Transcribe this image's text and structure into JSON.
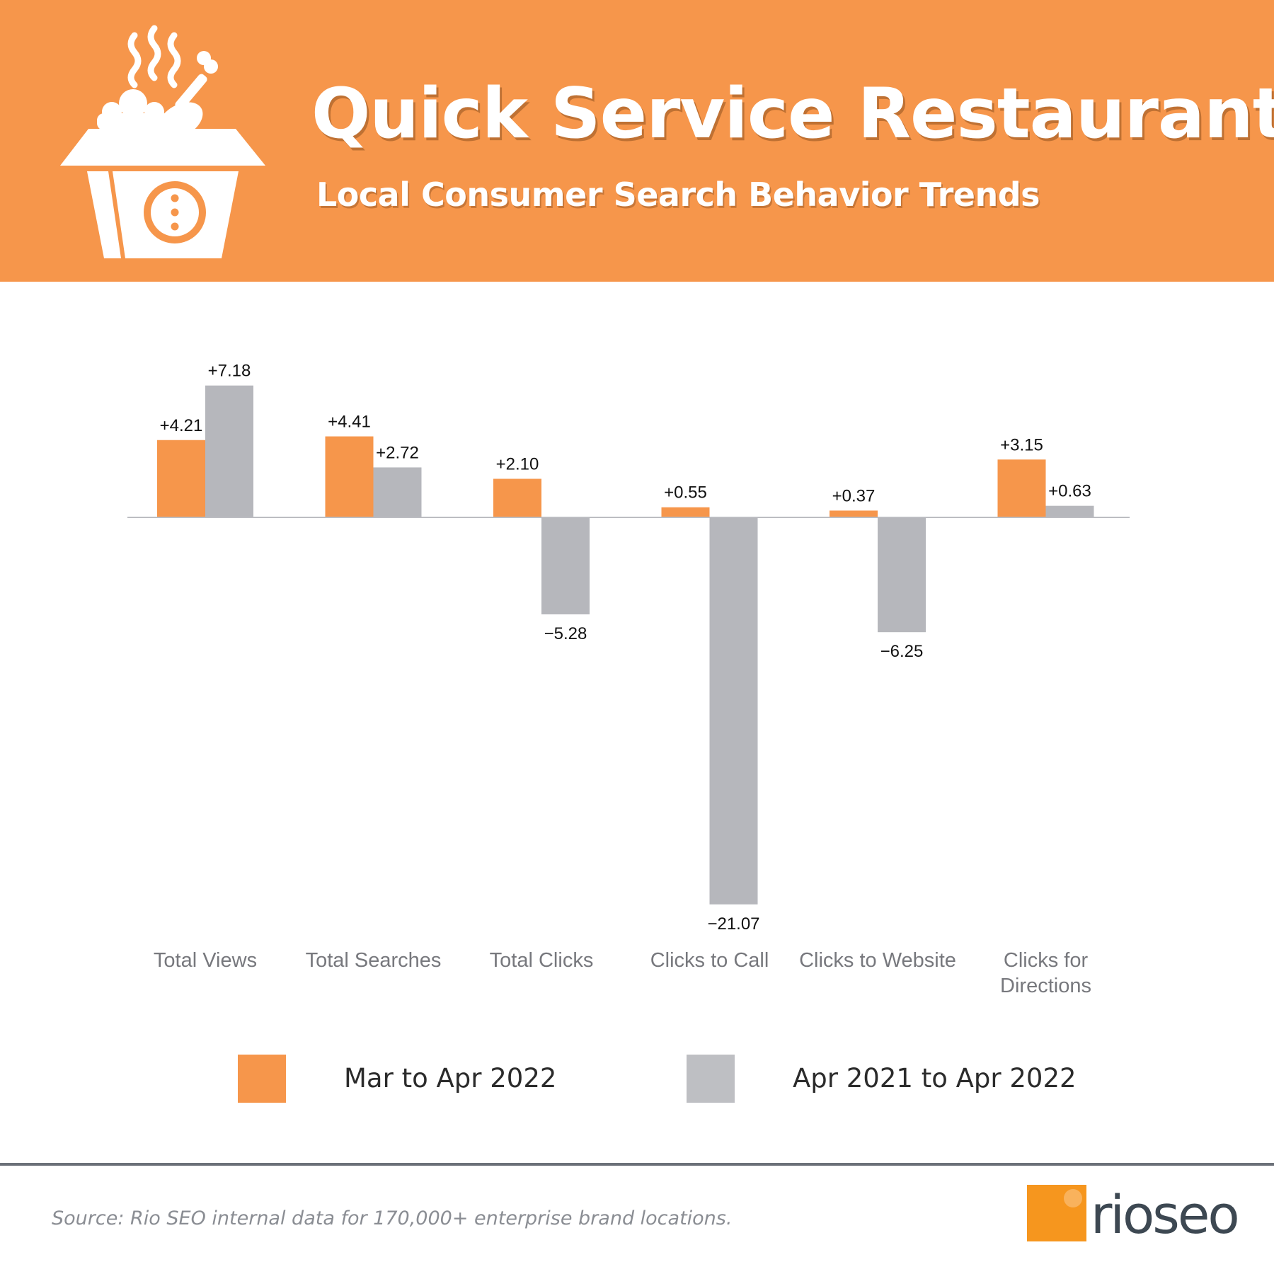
{
  "header": {
    "title": "Quick Service Restaurants",
    "subtitle": "Local Consumer Search Behavior Trends",
    "background_color": "#F6964B",
    "icon": "takeout-food-box-icon"
  },
  "chart_data": {
    "type": "bar",
    "title": "",
    "xlabel": "",
    "ylabel": "",
    "ylim": [
      -21.07,
      7.18
    ],
    "grid": false,
    "legend_position": "bottom",
    "categories": [
      "Total Views",
      "Total Searches",
      "Total Clicks",
      "Clicks to Call",
      "Clicks to Website",
      "Clicks for Directions"
    ],
    "category_lines": [
      [
        "Total Views"
      ],
      [
        "Total Searches"
      ],
      [
        "Total Clicks"
      ],
      [
        "Clicks to Call"
      ],
      [
        "Clicks to Website"
      ],
      [
        "Clicks for",
        "Directions"
      ]
    ],
    "series": [
      {
        "name": "Mar to Apr 2022",
        "color": "#F6964B",
        "values": [
          4.21,
          4.41,
          2.1,
          0.55,
          0.37,
          3.15
        ],
        "labels": [
          "+4.21",
          "+4.41",
          "+2.10",
          "+0.55",
          "+0.37",
          "+3.15"
        ]
      },
      {
        "name": "Apr 2021 to Apr 2022",
        "color": "#B6B7BC",
        "values": [
          7.18,
          2.72,
          -5.28,
          -21.07,
          -6.25,
          0.63
        ],
        "labels": [
          "+7.18",
          "+2.72",
          "−5.28",
          "−21.07",
          "−6.25",
          "+0.63"
        ]
      }
    ]
  },
  "legend": {
    "items": [
      {
        "label": "Mar to Apr 2022",
        "color": "#F6964B"
      },
      {
        "label": "Apr 2021 to Apr 2022",
        "color": "#BEBFC3"
      }
    ]
  },
  "footer": {
    "source": "Source: Rio SEO internal data for 170,000+ enterprise brand locations.",
    "brand": {
      "part1": "rio",
      "part2": "seo",
      "mark_color": "#F6961E",
      "text_color": "#3d4852",
      "icon": "rio-seo-logo-icon"
    }
  }
}
